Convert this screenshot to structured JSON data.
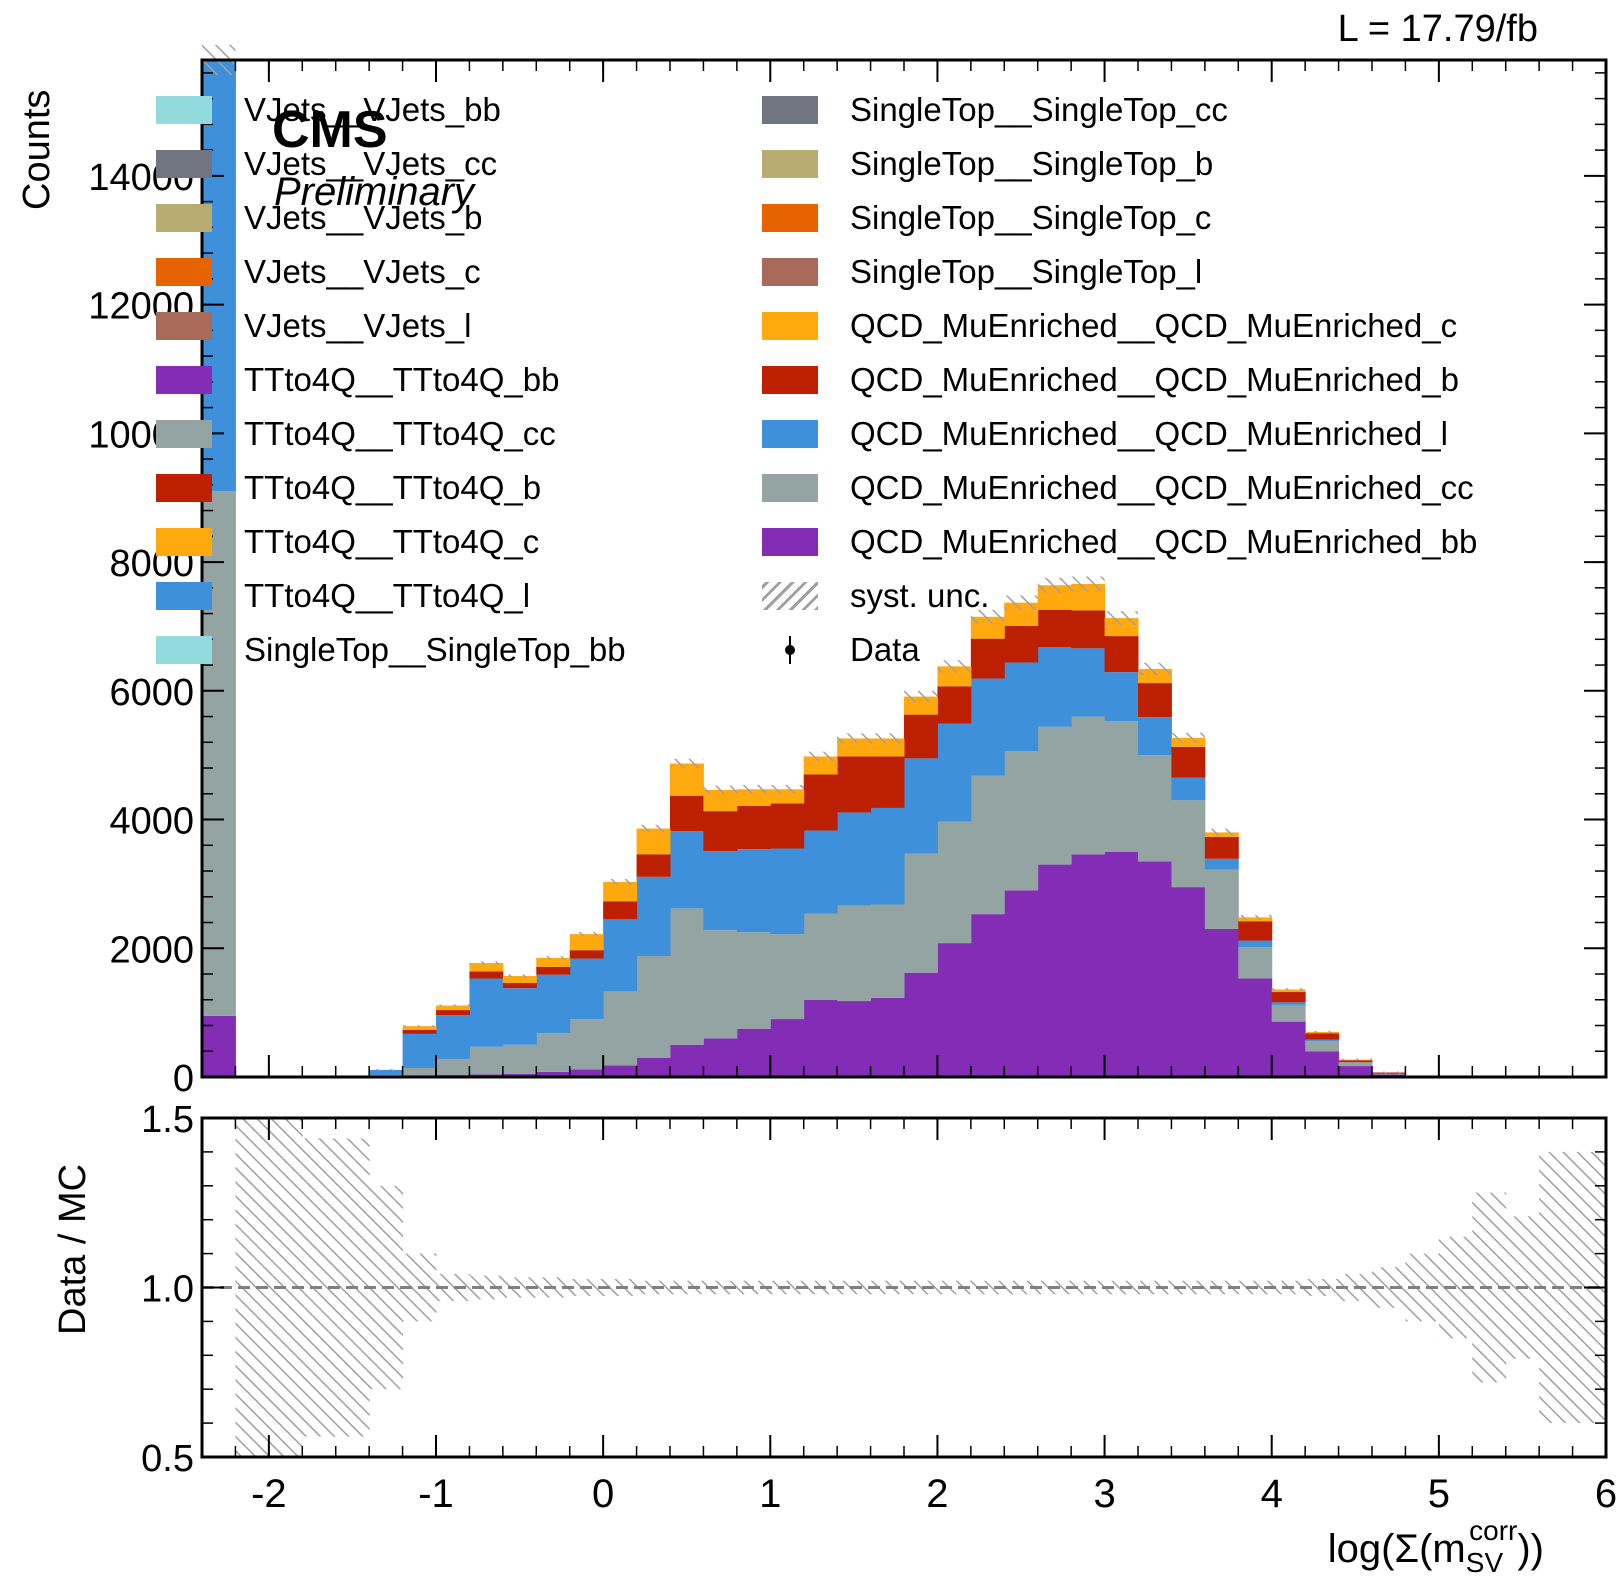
{
  "header": {
    "luminosity": "L = 17.79/fb",
    "experiment": "CMS",
    "status": "Preliminary"
  },
  "chart_data": [
    {
      "type": "bar",
      "stacked": true,
      "ylabel": "Counts",
      "xlim": [
        -2.4,
        6.0
      ],
      "ylim": [
        0,
        15800
      ],
      "yticks": [
        0,
        2000,
        4000,
        6000,
        8000,
        10000,
        12000,
        14000
      ],
      "ytick_labels": [
        "0",
        "2000",
        "4000",
        "6000",
        "8000",
        "10000",
        "12000",
        "14000"
      ],
      "bin_edges": [
        -2.4,
        -2.2,
        -2.0,
        -1.8,
        -1.6,
        -1.4,
        -1.2,
        -1.0,
        -0.8,
        -0.6,
        -0.4,
        -0.2,
        0.0,
        0.2,
        0.4,
        0.6,
        0.8,
        1.0,
        1.2,
        1.4,
        1.6,
        1.8,
        2.0,
        2.2,
        2.4,
        2.6,
        2.8,
        3.0,
        3.2,
        3.4,
        3.6,
        3.8,
        4.0,
        4.2,
        4.4,
        4.6,
        4.8,
        5.0,
        5.2,
        5.4,
        5.6,
        5.8,
        6.0
      ],
      "stack_order": "bottom to top",
      "series": [
        {
          "name": "QCD_MuEnriched__QCD_MuEnriched_bb",
          "color": "#832db6",
          "values": [
            950,
            0,
            0,
            0,
            0,
            0,
            0,
            30,
            40,
            50,
            80,
            120,
            180,
            300,
            500,
            600,
            750,
            900,
            1200,
            1180,
            1230,
            1620,
            2080,
            2530,
            2900,
            3300,
            3460,
            3500,
            3350,
            2950,
            2300,
            1530,
            860,
            400,
            170,
            40,
            0,
            0,
            0,
            0,
            0,
            0
          ]
        },
        {
          "name": "QCD_MuEnriched__QCD_MuEnriched_cc",
          "color": "#94a4a2",
          "values": [
            8150,
            0,
            0,
            0,
            0,
            30,
            140,
            250,
            430,
            450,
            600,
            780,
            1150,
            1580,
            2120,
            1680,
            1500,
            1320,
            1340,
            1480,
            1450,
            1850,
            1890,
            2150,
            2160,
            2140,
            2140,
            2030,
            1650,
            1350,
            920,
            490,
            260,
            160,
            60,
            10,
            0,
            0,
            0,
            0,
            0,
            0
          ]
        },
        {
          "name": "QCD_MuEnriched__QCD_MuEnriched_l",
          "color": "#3f90da",
          "values": [
            6700,
            0,
            0,
            0,
            0,
            80,
            530,
            680,
            1060,
            880,
            910,
            940,
            1120,
            1230,
            1200,
            1230,
            1290,
            1330,
            1290,
            1450,
            1500,
            1480,
            1520,
            1510,
            1380,
            1240,
            1060,
            760,
            590,
            350,
            170,
            100,
            40,
            20,
            0,
            0,
            0,
            0,
            0,
            0,
            0,
            0
          ]
        },
        {
          "name": "QCD_MuEnriched__QCD_MuEnriched_b",
          "color": "#bd1f01",
          "values": [
            0,
            0,
            0,
            0,
            0,
            0,
            60,
            80,
            110,
            80,
            120,
            130,
            280,
            350,
            550,
            620,
            670,
            700,
            870,
            870,
            800,
            680,
            580,
            620,
            570,
            580,
            590,
            560,
            530,
            480,
            340,
            300,
            160,
            100,
            30,
            20,
            0,
            0,
            0,
            0,
            0,
            0
          ]
        },
        {
          "name": "QCD_MuEnriched__QCD_MuEnriched_c",
          "color": "#ffa90e",
          "values": [
            0,
            0,
            0,
            0,
            0,
            0,
            60,
            70,
            130,
            110,
            140,
            250,
            300,
            400,
            500,
            330,
            260,
            220,
            280,
            280,
            280,
            280,
            310,
            340,
            360,
            380,
            410,
            280,
            220,
            140,
            70,
            60,
            40,
            20,
            10,
            0,
            0,
            0,
            0,
            0,
            0,
            0
          ]
        },
        {
          "name": "syst. unc.",
          "hatched": true,
          "color": "#a0a0a0"
        }
      ],
      "observed": {
        "name": "Data"
      }
    },
    {
      "type": "bar",
      "ylabel": "Data / MC",
      "xlabel": "log(Σ(m",
      "xlabel_sub": "SV",
      "xlabel_sup": "corr",
      "xlabel_tail": "))",
      "xlim": [
        -2.4,
        6.0
      ],
      "ylim": [
        0.5,
        1.5
      ],
      "yticks": [
        0.5,
        1.0,
        1.5
      ],
      "ytick_labels": [
        "0.5",
        "1.0",
        "1.5"
      ],
      "xticks": [
        -2,
        -1,
        0,
        1,
        2,
        3,
        4,
        5,
        6
      ],
      "xtick_labels": [
        "-2",
        "-1",
        "0",
        "1",
        "2",
        "3",
        "4",
        "5",
        "6"
      ],
      "reference_line": 1.0,
      "band_half_width": [
        0,
        0.5,
        0.5,
        0.44,
        0.44,
        0.3,
        0.1,
        0.04,
        0.035,
        0.03,
        0.03,
        0.025,
        0.025,
        0.02,
        0.02,
        0.02,
        0.02,
        0.02,
        0.02,
        0.02,
        0.02,
        0.02,
        0.02,
        0.02,
        0.02,
        0.02,
        0.02,
        0.02,
        0.02,
        0.02,
        0.02,
        0.02,
        0.02,
        0.025,
        0.04,
        0.06,
        0.1,
        0.15,
        0.28,
        0.21,
        0.4,
        0.4
      ]
    }
  ],
  "legend": {
    "left": [
      {
        "label": "VJets__VJets_bb",
        "color": "#92dadd"
      },
      {
        "label": "VJets__VJets_cc",
        "color": "#717581"
      },
      {
        "label": "VJets__VJets_b",
        "color": "#b9ac70"
      },
      {
        "label": "VJets__VJets_c",
        "color": "#e76300"
      },
      {
        "label": "VJets__VJets_l",
        "color": "#a96b59"
      },
      {
        "label": "TTto4Q__TTto4Q_bb",
        "color": "#832db6"
      },
      {
        "label": "TTto4Q__TTto4Q_cc",
        "color": "#94a4a2"
      },
      {
        "label": "TTto4Q__TTto4Q_b",
        "color": "#bd1f01"
      },
      {
        "label": "TTto4Q__TTto4Q_c",
        "color": "#ffa90e"
      },
      {
        "label": "TTto4Q__TTto4Q_l",
        "color": "#3f90da"
      },
      {
        "label": "SingleTop__SingleTop_bb",
        "color": "#92dadd"
      }
    ],
    "right": [
      {
        "label": "SingleTop__SingleTop_cc",
        "color": "#717581"
      },
      {
        "label": "SingleTop__SingleTop_b",
        "color": "#b9ac70"
      },
      {
        "label": "SingleTop__SingleTop_c",
        "color": "#e76300"
      },
      {
        "label": "SingleTop__SingleTop_l",
        "color": "#a96b59"
      },
      {
        "label": "QCD_MuEnriched__QCD_MuEnriched_c",
        "color": "#ffa90e"
      },
      {
        "label": "QCD_MuEnriched__QCD_MuEnriched_b",
        "color": "#bd1f01"
      },
      {
        "label": "QCD_MuEnriched__QCD_MuEnriched_l",
        "color": "#3f90da"
      },
      {
        "label": "QCD_MuEnriched__QCD_MuEnriched_cc",
        "color": "#94a4a2"
      },
      {
        "label": "QCD_MuEnriched__QCD_MuEnriched_bb",
        "color": "#832db6"
      },
      {
        "label": "syst. unc.",
        "color": "hatch"
      },
      {
        "label": "Data",
        "color": "marker"
      }
    ]
  }
}
